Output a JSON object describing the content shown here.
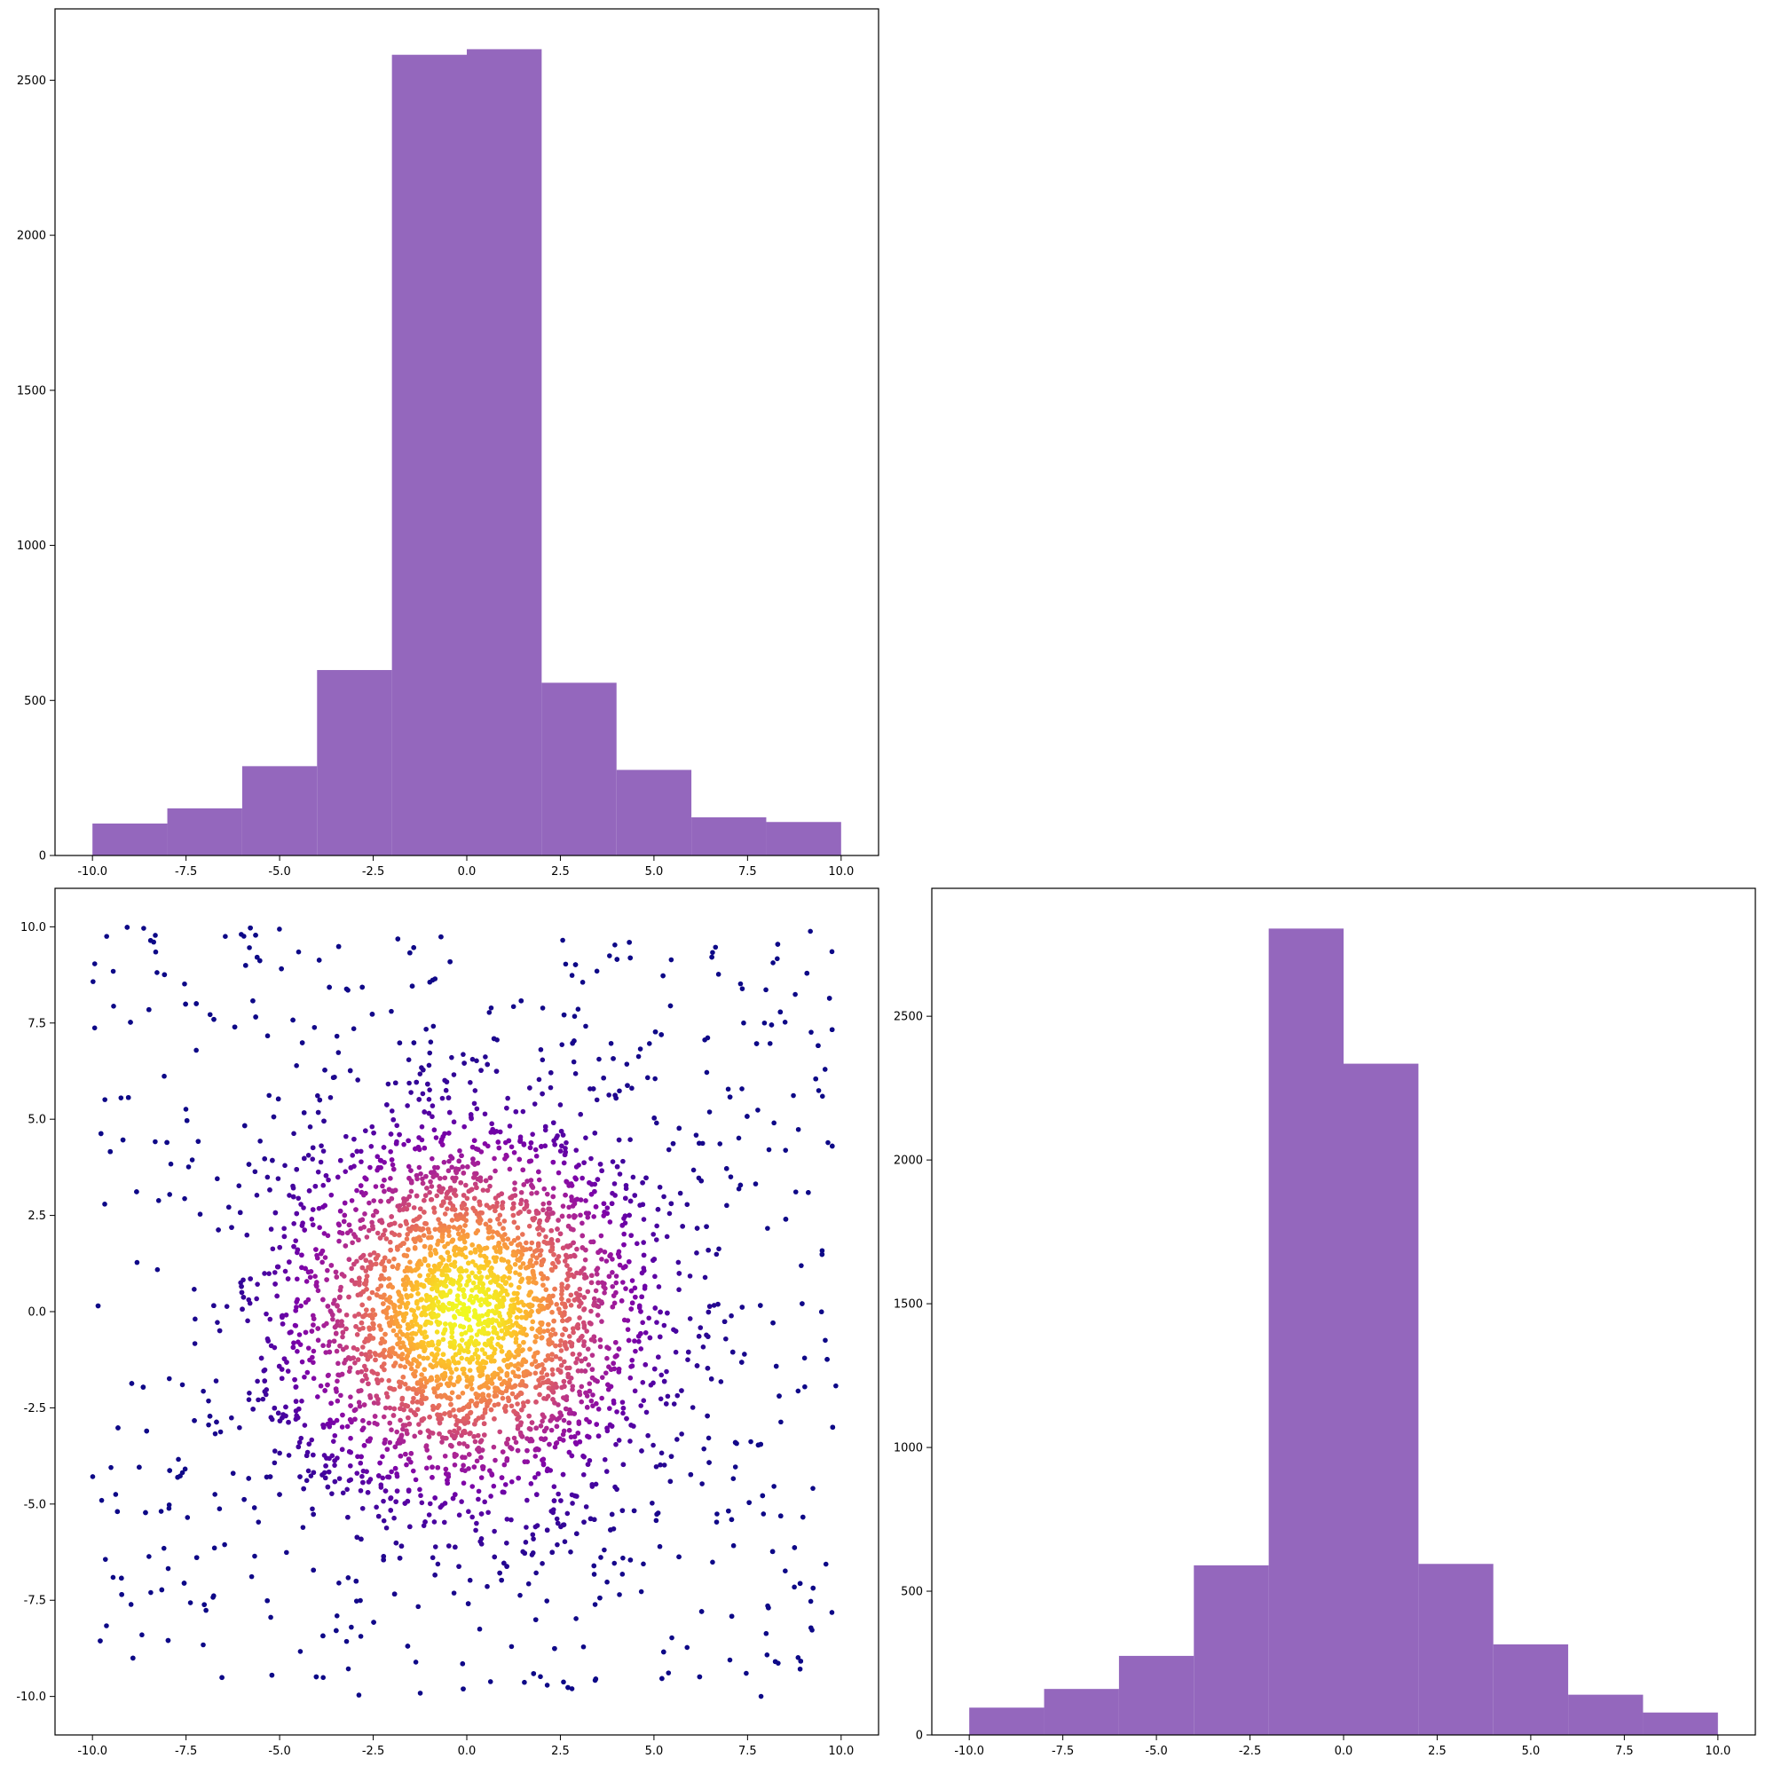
{
  "chart_data": [
    {
      "type": "bar",
      "panel": "top-left",
      "title": "",
      "xlabel": "",
      "ylabel": "",
      "bin_edges": [
        -10,
        -8,
        -6,
        -4,
        -2,
        0,
        2,
        4,
        6,
        8,
        10
      ],
      "values": [
        103,
        152,
        288,
        598,
        2582,
        2600,
        557,
        276,
        123,
        108
      ],
      "xlim": [
        -11,
        11
      ],
      "ylim": [
        0,
        2730
      ],
      "xticks": [
        "-10.0",
        "-7.5",
        "-5.0",
        "-2.5",
        "0.0",
        "2.5",
        "5.0",
        "7.5",
        "10.0"
      ],
      "yticks": [
        "0",
        "500",
        "1000",
        "1500",
        "2000",
        "2500"
      ],
      "color": "#9467bd",
      "grid": false
    },
    {
      "type": "scatter",
      "panel": "bottom-left",
      "title": "",
      "xlabel": "",
      "ylabel": "",
      "description_of_points": "density-colored scatter of about 5000 points, dense core centered at (0, 0), sparse uniform background across the square",
      "point_count": 5000,
      "core_std": 2.5,
      "xlim": [
        -11,
        11
      ],
      "ylim": [
        -11,
        11
      ],
      "xticks": [
        "-10.0",
        "-7.5",
        "-5.0",
        "-2.5",
        "0.0",
        "2.5",
        "5.0",
        "7.5",
        "10.0"
      ],
      "yticks": [
        "-10.0",
        "-7.5",
        "-5.0",
        "-2.5",
        "0.0",
        "2.5",
        "5.0",
        "7.5",
        "10.0"
      ],
      "colormap": "plasma",
      "grid": false
    },
    {
      "type": "bar",
      "panel": "bottom-right",
      "title": "",
      "xlabel": "",
      "ylabel": "",
      "bin_edges": [
        -10,
        -8,
        -6,
        -4,
        -2,
        0,
        2,
        4,
        6,
        8,
        10
      ],
      "values": [
        95,
        160,
        275,
        590,
        2805,
        2335,
        595,
        315,
        140,
        78
      ],
      "xlim": [
        -11,
        11
      ],
      "ylim": [
        0,
        2945
      ],
      "xticks": [
        "-10.0",
        "-7.5",
        "-5.0",
        "-2.5",
        "0.0",
        "2.5",
        "5.0",
        "7.5",
        "10.0"
      ],
      "yticks": [
        "0",
        "500",
        "1000",
        "1500",
        "2000",
        "2500"
      ],
      "color": "#9467bd",
      "grid": false
    }
  ]
}
